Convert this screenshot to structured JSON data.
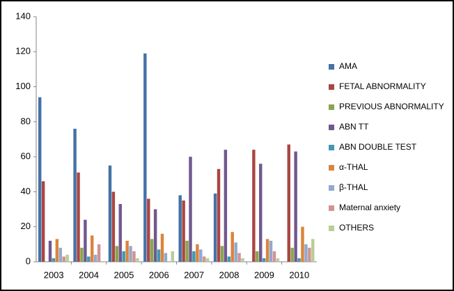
{
  "chart_data": {
    "type": "bar",
    "categories": [
      "2003",
      "2004",
      "2005",
      "2006",
      "2007",
      "2008",
      "2009",
      "2010"
    ],
    "series": [
      {
        "name": "AMA",
        "color": "#4572a7",
        "values": [
          94,
          76,
          55,
          119,
          38,
          39,
          0,
          0
        ]
      },
      {
        "name": "FETAL ABNORMALITY",
        "color": "#aa4643",
        "values": [
          46,
          51,
          40,
          36,
          35,
          53,
          64,
          67
        ]
      },
      {
        "name": "PREVIOUS ABNORMALITY",
        "color": "#89a54e",
        "values": [
          0,
          8,
          9,
          13,
          12,
          9,
          6,
          8
        ]
      },
      {
        "name": "ABN TT",
        "color": "#71588f",
        "values": [
          12,
          24,
          33,
          30,
          60,
          64,
          56,
          63
        ]
      },
      {
        "name": "ABN DOUBLE TEST",
        "color": "#4198af",
        "values": [
          2,
          3,
          6,
          7,
          6,
          3,
          2,
          2
        ]
      },
      {
        "name": "α-THAL",
        "color": "#db843d",
        "values": [
          13,
          15,
          12,
          16,
          10,
          17,
          13,
          20
        ]
      },
      {
        "name": "β-THAL",
        "color": "#93a9cf",
        "values": [
          8,
          4,
          9,
          5,
          7,
          11,
          12,
          10
        ]
      },
      {
        "name": "Maternal anxiety",
        "color": "#d19392",
        "values": [
          3,
          10,
          6,
          0,
          3,
          5,
          6,
          8
        ]
      },
      {
        "name": "OTHERS",
        "color": "#b9cd96",
        "values": [
          4,
          0,
          2,
          6,
          2,
          2,
          2,
          13
        ]
      }
    ],
    "ylim": [
      0,
      140
    ],
    "yticks": [
      0,
      20,
      40,
      60,
      80,
      100,
      120,
      140
    ],
    "grid": false,
    "legend": "right"
  }
}
